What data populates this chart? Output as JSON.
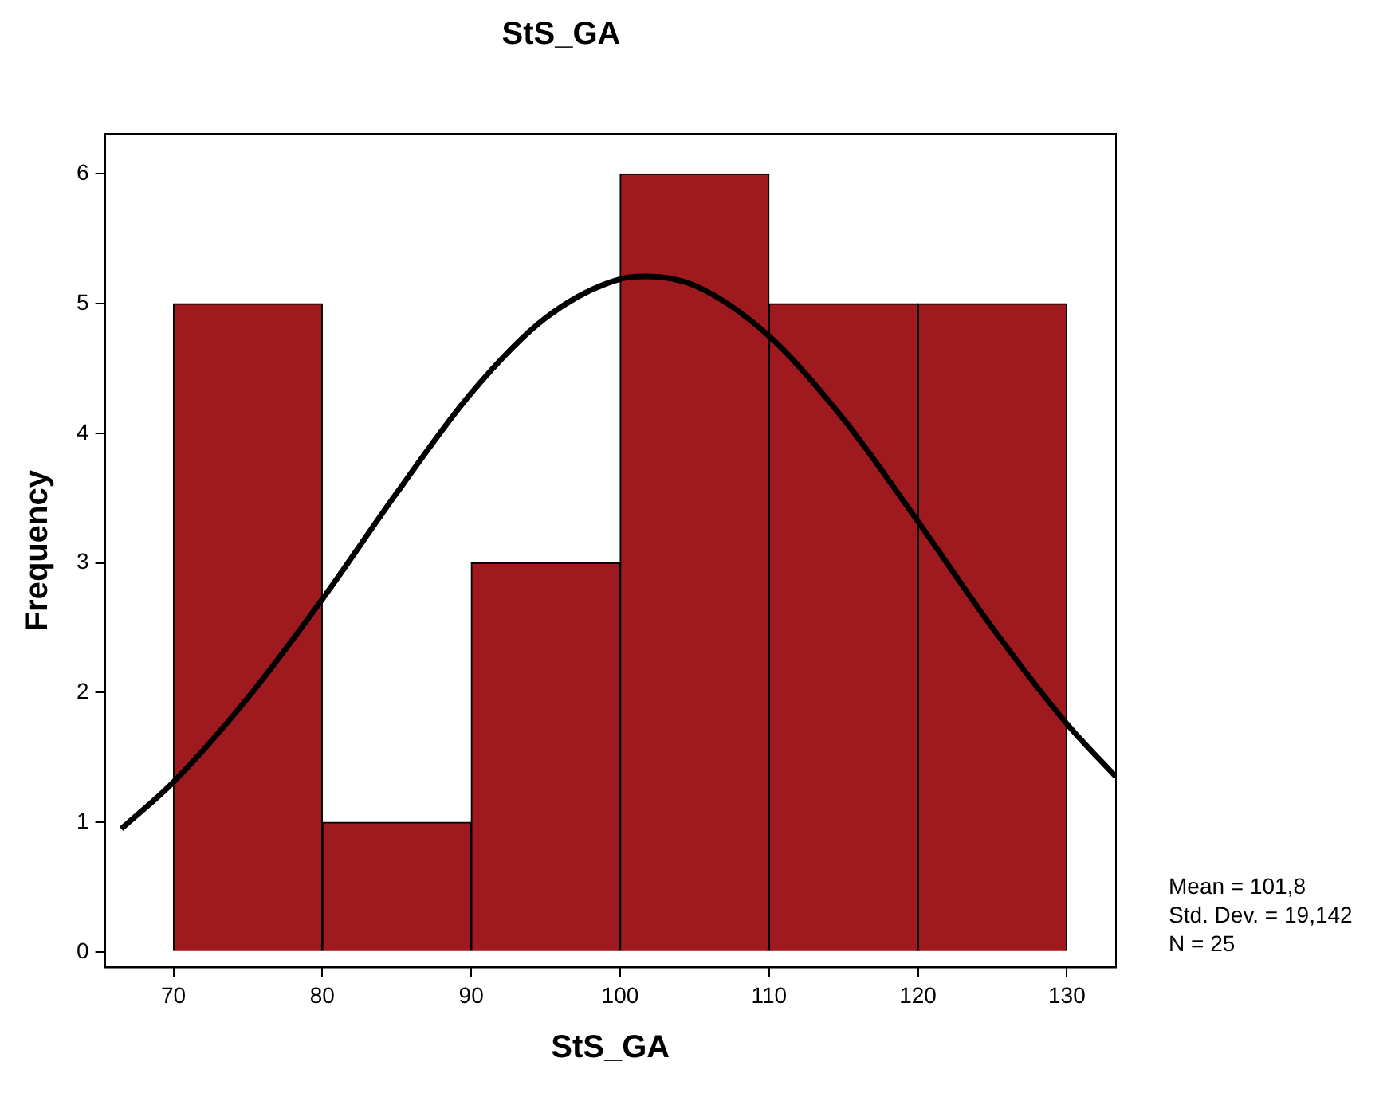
{
  "chart_data": {
    "type": "histogram",
    "title": "StS_GA",
    "xlabel": "StS_GA",
    "ylabel": "Frequency",
    "bins": [
      70,
      80,
      90,
      100,
      110,
      120,
      130
    ],
    "values": [
      5,
      1,
      3,
      6,
      5,
      5
    ],
    "color": "#9e1a1e",
    "series": [
      {
        "type": "line",
        "color": "#000000",
        "x": [
          66.5,
          70,
          75,
          80,
          85,
          90,
          95,
          100,
          101.8,
          105,
          110,
          115,
          120,
          125,
          130,
          133.3
        ],
        "values": [
          0.95,
          1.31,
          1.96,
          2.72,
          3.54,
          4.31,
          4.89,
          5.19,
          5.21,
          5.14,
          4.75,
          4.11,
          3.32,
          2.5,
          1.76,
          1.35
        ]
      }
    ],
    "xlim": [
      65.4,
      133.3
    ],
    "xticks": [
      70,
      80,
      90,
      100,
      110,
      120,
      130
    ],
    "ylim": [
      -0.12,
      6.31
    ],
    "yticks": [
      0,
      1,
      2,
      3,
      4,
      5,
      6
    ],
    "grid": false,
    "legend": false,
    "marker": "none",
    "line_style": "solid",
    "annotations": [
      "Mean = 101,8",
      "Std. Dev. = 19,142",
      "N = 25"
    ]
  }
}
